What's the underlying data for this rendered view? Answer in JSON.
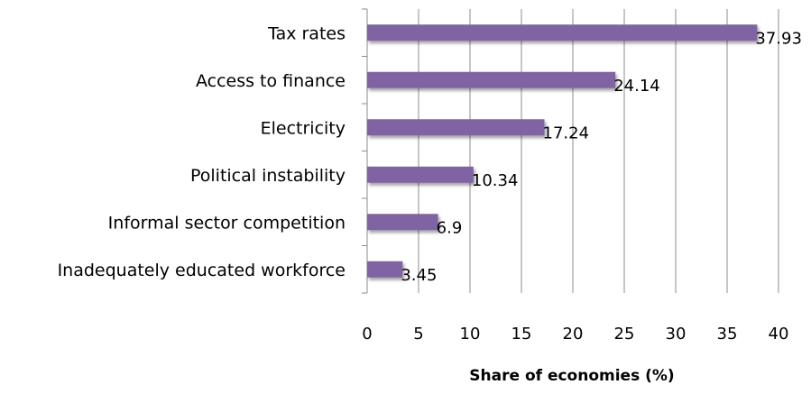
{
  "chart_data": {
    "type": "bar",
    "orientation": "horizontal",
    "categories": [
      "Tax rates",
      "Access to finance",
      "Electricity",
      "Political instability",
      "Informal sector competition",
      "Inadequately educated workforce"
    ],
    "values": [
      37.93,
      24.14,
      17.24,
      10.34,
      6.9,
      3.45
    ],
    "value_labels": [
      "37.93",
      "24.14",
      "17.24",
      "10.34",
      "6.9",
      "3.45"
    ],
    "xlabel": "Share of economies (%)",
    "xlim": [
      0,
      40
    ],
    "xticks": [
      "0",
      "5",
      "10",
      "15",
      "20",
      "25",
      "30",
      "35",
      "40"
    ],
    "grid": "vertical",
    "bar_color": "#8064a2"
  }
}
